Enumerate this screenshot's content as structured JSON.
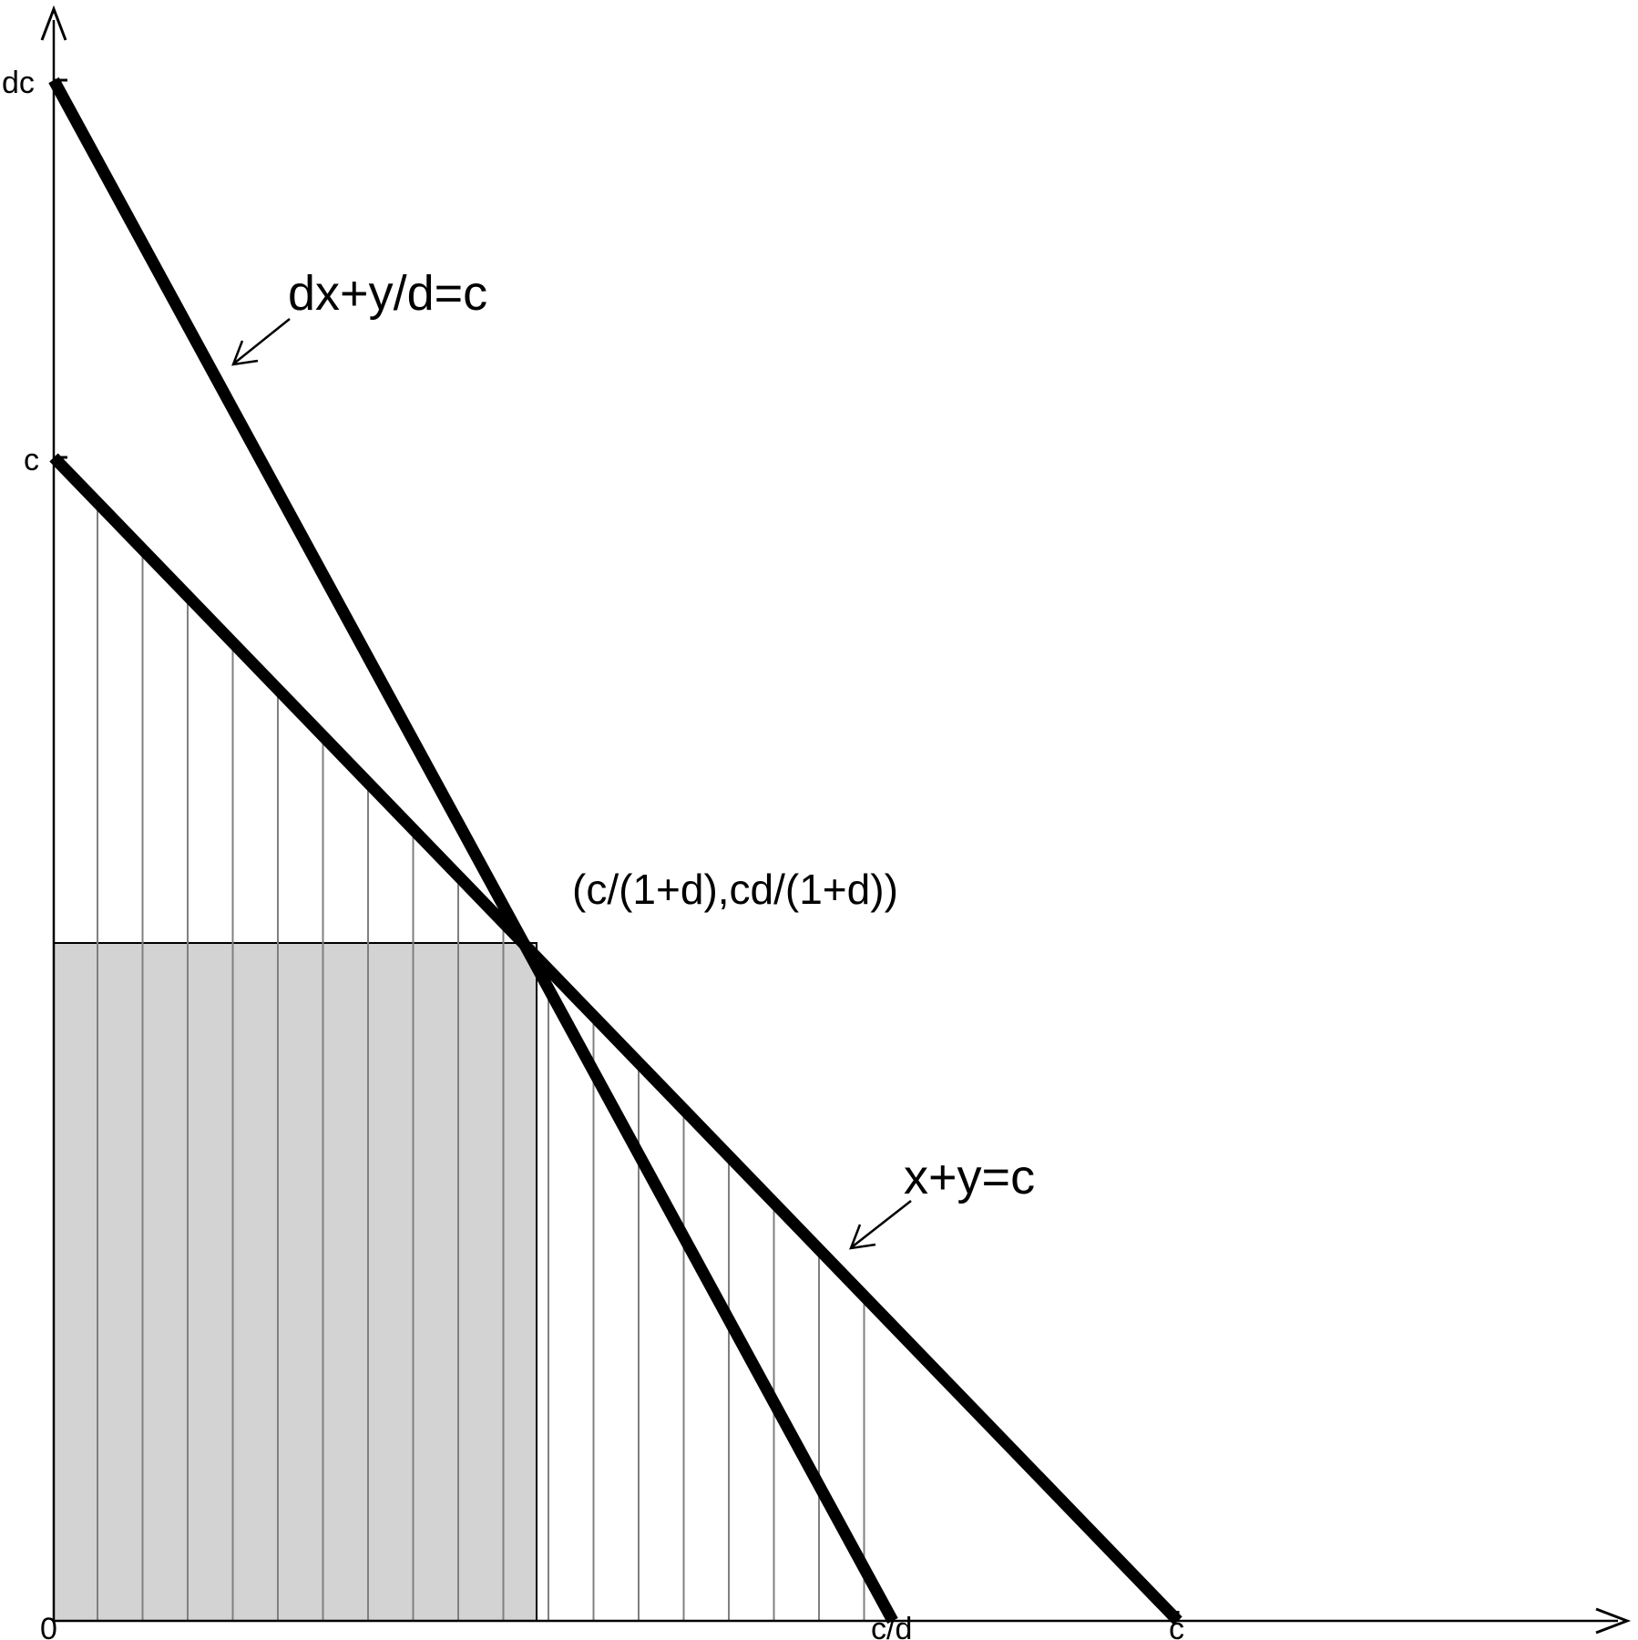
{
  "labels": {
    "y_dc": "dc",
    "y_c": "c",
    "x_origin": "0",
    "x_cd": "c/d",
    "x_c": "c",
    "line1": "dx+y/d=c",
    "line2": "x+y=c",
    "intersection": "(c/(1+d),cd/(1+d))"
  },
  "colors": {
    "line": "#000000",
    "shade": "#d3d3d3",
    "hatch": "#808080",
    "background": "#ffffff"
  }
}
